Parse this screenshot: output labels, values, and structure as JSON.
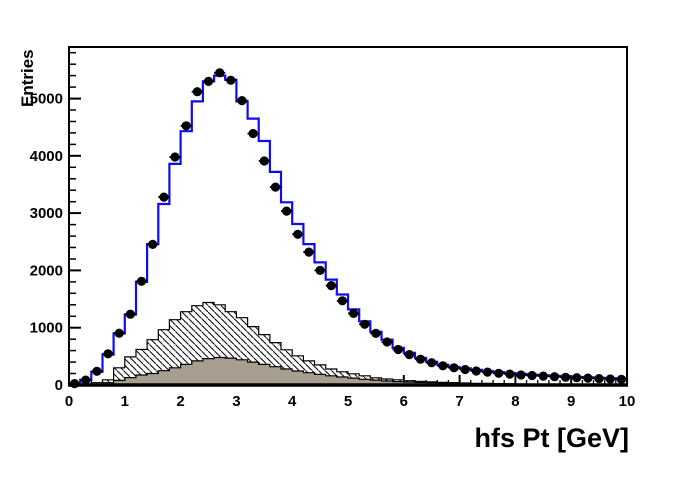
{
  "figure": {
    "background": "#ffffff",
    "frame_color": "#000000"
  },
  "chart_data": {
    "type": "bar",
    "subtype": "overlaid-histograms-root-style",
    "title": "",
    "xlabel": "hfs Pt [GeV]",
    "ylabel": "Entries",
    "x_range": [
      0,
      10
    ],
    "y_range": [
      0,
      5900
    ],
    "bin_width": 0.2,
    "grid": false,
    "legend": "none",
    "x_major_ticks": [
      0,
      1,
      2,
      3,
      4,
      5,
      6,
      7,
      8,
      9,
      10
    ],
    "x_minor_step": 0.2,
    "y_major_ticks": [
      0,
      1000,
      2000,
      3000,
      4000,
      5000
    ],
    "y_minor_step": 200,
    "bin_centers": [
      0.1,
      0.3,
      0.5,
      0.7,
      0.9,
      1.1,
      1.3,
      1.5,
      1.7,
      1.9,
      2.1,
      2.3,
      2.5,
      2.7,
      2.9,
      3.1,
      3.3,
      3.5,
      3.7,
      3.9,
      4.1,
      4.3,
      4.5,
      4.7,
      4.9,
      5.1,
      5.3,
      5.5,
      5.7,
      5.9,
      6.1,
      6.3,
      6.5,
      6.7,
      6.9,
      7.1,
      7.3,
      7.5,
      7.7,
      7.9,
      8.1,
      8.3,
      8.5,
      8.7,
      8.9,
      9.1,
      9.3,
      9.5,
      9.7,
      9.9
    ],
    "series": [
      {
        "name": "total-mc-histogram",
        "style": "step-line",
        "color": "#0d0df0",
        "line_width": 2.2,
        "values": [
          30,
          90,
          230,
          530,
          900,
          1230,
          1800,
          2460,
          3160,
          3860,
          4430,
          4950,
          5300,
          5400,
          5330,
          4950,
          4650,
          4260,
          3720,
          3190,
          2810,
          2460,
          2140,
          1840,
          1580,
          1320,
          1110,
          930,
          790,
          650,
          560,
          475,
          405,
          350,
          315,
          290,
          265,
          245,
          225,
          210,
          195,
          180,
          170,
          160,
          150,
          140,
          132,
          125,
          118,
          112
        ]
      },
      {
        "name": "hatched-background-histogram",
        "style": "hatched-fill",
        "outline_color": "#000000",
        "hatch": "diagonal-backslash",
        "values": [
          0,
          5,
          40,
          90,
          300,
          490,
          620,
          790,
          965,
          1140,
          1280,
          1385,
          1440,
          1400,
          1280,
          1175,
          1020,
          880,
          740,
          615,
          510,
          420,
          350,
          280,
          230,
          195,
          160,
          125,
          105,
          90,
          75,
          65,
          55,
          48,
          42,
          35,
          30,
          28,
          25,
          22,
          18,
          8,
          6,
          5,
          4,
          4,
          3,
          3,
          2,
          2
        ]
      },
      {
        "name": "gray-background-histogram",
        "style": "solid-fill",
        "fill_color": "#a79e90",
        "outline_color": "#000000",
        "values": [
          0,
          3,
          15,
          40,
          80,
          130,
          175,
          200,
          250,
          300,
          360,
          420,
          460,
          480,
          470,
          440,
          400,
          360,
          320,
          280,
          245,
          215,
          185,
          160,
          140,
          120,
          100,
          85,
          70,
          60,
          52,
          45,
          40,
          36,
          32,
          28,
          8,
          6,
          5,
          4,
          3,
          3,
          2,
          2,
          2,
          1,
          1,
          1,
          1,
          1
        ]
      },
      {
        "name": "data-points",
        "style": "filled-circle-markers",
        "color": "#000000",
        "marker_radius": 4.6,
        "values": [
          25,
          85,
          240,
          545,
          905,
          1235,
          1810,
          2455,
          3280,
          3980,
          4525,
          5120,
          5300,
          5450,
          5320,
          4965,
          4390,
          3910,
          3455,
          3035,
          2630,
          2320,
          2000,
          1735,
          1470,
          1250,
          1060,
          900,
          750,
          620,
          530,
          450,
          390,
          335,
          300,
          270,
          245,
          225,
          205,
          190,
          175,
          165,
          155,
          145,
          135,
          128,
          120,
          112,
          105,
          100
        ]
      }
    ]
  }
}
